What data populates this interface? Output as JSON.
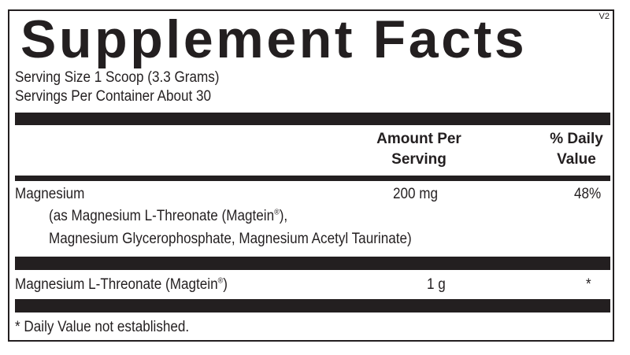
{
  "title": "Supplement Facts",
  "version": "V2",
  "serving_size": "Serving Size 1 Scoop (3.3 Grams)",
  "servings_per_container": "Servings Per Container About 30",
  "header": {
    "amount_line1": "Amount Per",
    "amount_line2": "Serving",
    "dv_line1": "% Daily",
    "dv_line2": "Value"
  },
  "rows": [
    {
      "name": "Magnesium",
      "sub1": "(as Magnesium L-Threonate (Magtein",
      "sub1_reg": "®",
      "sub1_end": "),",
      "sub2": "Magnesium Glycerophosphate, Magnesium Acetyl Taurinate)",
      "amount": "200 mg",
      "dv": "48%"
    },
    {
      "name": "Magnesium L-Threonate (Magtein",
      "reg": "®",
      "end": ")",
      "amount": "1 g",
      "dv": "*"
    }
  ],
  "footnote": "* Daily Value not established."
}
